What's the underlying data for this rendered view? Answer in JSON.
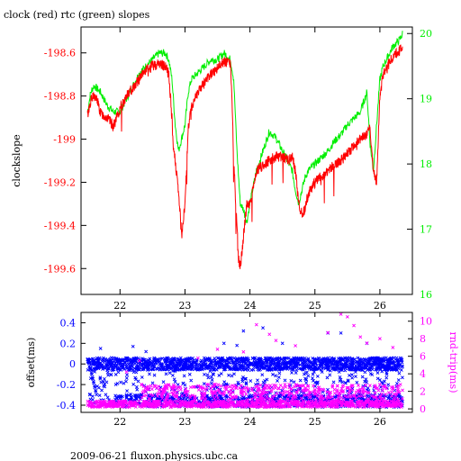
{
  "title": "clock (red) rtc (green) slopes",
  "footer": "2009-06-21 fluxon.physics.ubc.ca",
  "colors": {
    "red": "#ff0000",
    "green": "#00ee00",
    "blue": "#0000ff",
    "magenta": "#ff00ff",
    "axis": "#000000"
  },
  "chart_data": [
    {
      "type": "line",
      "ylabel": "clockslope",
      "y2label": "",
      "xlim": [
        21.4,
        26.5
      ],
      "ylim": [
        -199.72,
        -198.48
      ],
      "y2lim": [
        16,
        20.1
      ],
      "xticks": [
        22,
        23,
        24,
        25,
        26
      ],
      "yticks": [
        -198.6,
        -198.8,
        -199,
        -199.2,
        -199.4,
        -199.6
      ],
      "ytick_labels": [
        "-198.6",
        "-198.8",
        "-199",
        "-199.2",
        "-199.4",
        "-199.6"
      ],
      "y2ticks": [
        16,
        17,
        18,
        19,
        20
      ],
      "series": [
        {
          "name": "clock",
          "axis": "left",
          "x": [
            21.5,
            21.55,
            21.6,
            21.65,
            21.7,
            21.8,
            21.9,
            22.0,
            22.1,
            22.2,
            22.3,
            22.4,
            22.5,
            22.6,
            22.7,
            22.75,
            22.8,
            22.82,
            22.85,
            22.9,
            22.95,
            23.0,
            23.05,
            23.1,
            23.2,
            23.3,
            23.4,
            23.5,
            23.6,
            23.7,
            23.72,
            23.75,
            23.8,
            23.82,
            23.85,
            23.9,
            23.95,
            24.0,
            24.1,
            24.2,
            24.3,
            24.4,
            24.5,
            24.6,
            24.65,
            24.7,
            24.75,
            24.8,
            24.85,
            24.9,
            25.0,
            25.1,
            25.2,
            25.3,
            25.4,
            25.5,
            25.6,
            25.7,
            25.8,
            25.85,
            25.9,
            25.95,
            26.0,
            26.05,
            26.1,
            26.15,
            26.2,
            26.3,
            26.35
          ],
          "y": [
            -198.89,
            -198.82,
            -198.8,
            -198.82,
            -198.88,
            -198.9,
            -198.94,
            -198.86,
            -198.8,
            -198.76,
            -198.72,
            -198.68,
            -198.66,
            -198.65,
            -198.66,
            -198.7,
            -198.9,
            -199.05,
            -199.1,
            -199.25,
            -199.45,
            -199.3,
            -198.95,
            -198.85,
            -198.78,
            -198.74,
            -198.7,
            -198.67,
            -198.64,
            -198.65,
            -198.8,
            -199.1,
            -199.4,
            -199.55,
            -199.6,
            -199.45,
            -199.3,
            -199.3,
            -199.15,
            -199.12,
            -199.1,
            -199.08,
            -199.08,
            -199.1,
            -199.08,
            -199.15,
            -199.3,
            -199.35,
            -199.32,
            -199.25,
            -199.2,
            -199.17,
            -199.15,
            -199.12,
            -199.1,
            -199.07,
            -199.03,
            -199.0,
            -198.98,
            -198.95,
            -199.15,
            -199.2,
            -198.8,
            -198.7,
            -198.68,
            -198.64,
            -198.62,
            -198.59,
            -198.58
          ]
        },
        {
          "name": "rtc",
          "axis": "right",
          "x": [
            21.5,
            21.55,
            21.6,
            21.7,
            21.8,
            21.9,
            22.0,
            22.1,
            22.2,
            22.3,
            22.4,
            22.5,
            22.6,
            22.7,
            22.75,
            22.8,
            22.85,
            22.9,
            22.95,
            23.0,
            23.05,
            23.1,
            23.2,
            23.3,
            23.4,
            23.5,
            23.6,
            23.7,
            23.75,
            23.8,
            23.85,
            23.9,
            23.95,
            24.0,
            24.1,
            24.2,
            24.3,
            24.4,
            24.5,
            24.6,
            24.65,
            24.7,
            24.75,
            24.8,
            24.85,
            24.9,
            25.0,
            25.1,
            25.2,
            25.3,
            25.4,
            25.5,
            25.6,
            25.7,
            25.8,
            25.85,
            25.9,
            25.95,
            26.0,
            26.05,
            26.1,
            26.15,
            26.2,
            26.3,
            26.35
          ],
          "y": [
            18.8,
            19.1,
            19.2,
            19.1,
            18.9,
            18.8,
            18.8,
            19.0,
            19.2,
            19.4,
            19.5,
            19.6,
            19.7,
            19.7,
            19.6,
            19.3,
            18.6,
            18.2,
            18.4,
            18.6,
            19.1,
            19.3,
            19.4,
            19.5,
            19.6,
            19.6,
            19.7,
            19.6,
            19.3,
            18.2,
            17.4,
            17.3,
            17.1,
            17.4,
            17.9,
            18.2,
            18.5,
            18.4,
            18.2,
            18.0,
            17.9,
            17.6,
            17.4,
            17.6,
            17.8,
            17.9,
            18.0,
            18.1,
            18.2,
            18.35,
            18.45,
            18.6,
            18.7,
            18.8,
            19.1,
            18.3,
            17.9,
            18.6,
            19.3,
            19.5,
            19.6,
            19.7,
            19.8,
            19.9,
            20.0
          ]
        }
      ]
    },
    {
      "type": "scatter",
      "ylabel": "offset(ms)",
      "y2label": "rnd-trip(ms)",
      "xlim": [
        21.4,
        26.5
      ],
      "ylim": [
        -0.47,
        0.5
      ],
      "y2lim": [
        -0.4,
        11
      ],
      "xticks": [
        22,
        23,
        24,
        25,
        26
      ],
      "yticks": [
        0.4,
        0.2,
        0,
        -0.2,
        -0.4
      ],
      "y2ticks": [
        0,
        2,
        4,
        6,
        8,
        10
      ],
      "series": [
        {
          "name": "offset",
          "axis": "left",
          "marker": "x",
          "x": [
            21.7,
            22.2,
            23.8,
            23.9,
            24.2,
            24.5,
            25.4,
            25.8,
            22.4,
            23.6,
            25.2,
            21.6,
            22.1,
            24.9,
            25.9,
            22.6,
            23.1,
            24.6,
            25.5,
            26.1
          ],
          "y": [
            0.15,
            0.17,
            0.18,
            0.32,
            0.35,
            0.2,
            0.3,
            0.2,
            0.12,
            0.2,
            0.3,
            -0.38,
            -0.3,
            -0.3,
            -0.4,
            -0.35,
            -0.4,
            -0.33,
            -0.35,
            -0.42
          ]
        },
        {
          "name": "round-trip",
          "axis": "right",
          "marker": "x",
          "x": [
            22.1,
            22.3,
            23.5,
            24.1,
            24.3,
            24.4,
            25.2,
            25.4,
            25.5,
            25.6,
            25.7,
            25.8,
            26.0,
            26.2,
            23.9,
            24.7,
            23.2
          ],
          "y": [
            4.2,
            5.5,
            6.8,
            9.6,
            8.5,
            7.8,
            8.7,
            10.8,
            10.5,
            9.5,
            8.2,
            7.5,
            8.0,
            7.0,
            6.5,
            7.2,
            5.8
          ]
        }
      ]
    }
  ]
}
